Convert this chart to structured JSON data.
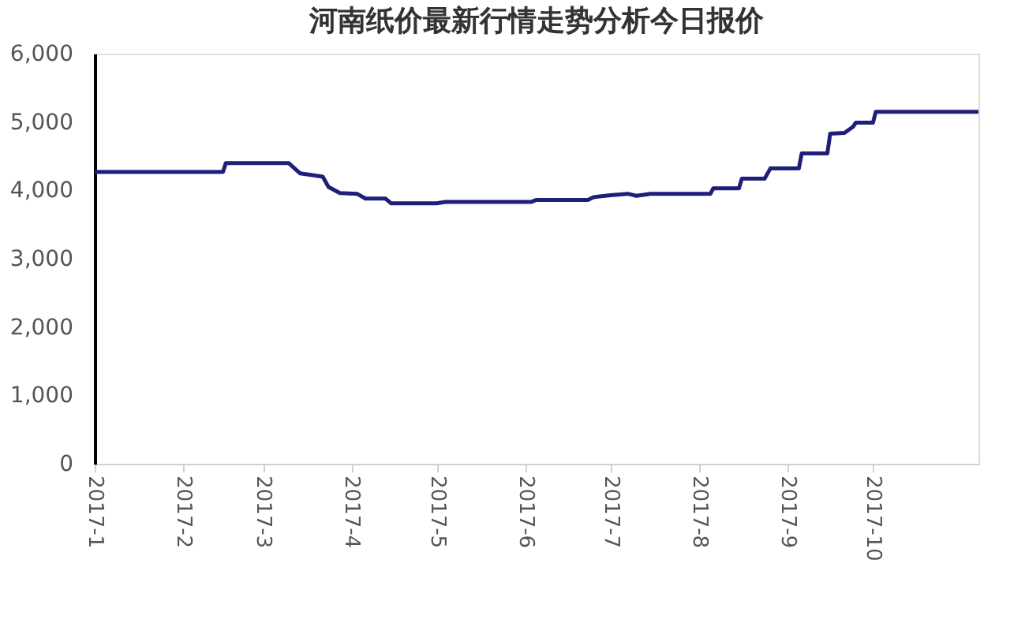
{
  "chart_data": {
    "type": "line",
    "title": "河南纸价最新行情走势分析今日报价",
    "x": [
      "2017-01-01",
      "2017-02-15",
      "2017-02-16",
      "2017-03-10",
      "2017-03-14",
      "2017-03-22",
      "2017-03-24",
      "2017-03-28",
      "2017-04-03",
      "2017-04-06",
      "2017-04-13",
      "2017-04-15",
      "2017-05-01",
      "2017-05-04",
      "2017-06-03",
      "2017-06-05",
      "2017-06-23",
      "2017-06-25",
      "2017-07-01",
      "2017-07-07",
      "2017-07-10",
      "2017-07-15",
      "2017-08-05",
      "2017-08-06",
      "2017-08-15",
      "2017-08-16",
      "2017-08-24",
      "2017-08-26",
      "2017-09-05",
      "2017-09-06",
      "2017-09-15",
      "2017-09-16",
      "2017-09-21",
      "2017-09-24",
      "2017-09-25",
      "2017-10-01",
      "2017-10-02",
      "2017-11-07"
    ],
    "series": [
      {
        "color": "#1f1f7a",
        "values": [
          4270,
          4270,
          4400,
          4400,
          4250,
          4200,
          4050,
          3960,
          3950,
          3880,
          3880,
          3810,
          3810,
          3830,
          3830,
          3860,
          3860,
          3900,
          3930,
          3950,
          3920,
          3950,
          3950,
          4030,
          4030,
          4170,
          4170,
          4320,
          4320,
          4540,
          4540,
          4830,
          4840,
          4930,
          4990,
          4990,
          5150,
          5150
        ]
      }
    ],
    "xlim": [
      "2017-01-01",
      "2017-11-07"
    ],
    "xticks": [
      {
        "value": "2017-01-01",
        "label": "2017-1"
      },
      {
        "value": "2017-02-01",
        "label": "2017-2"
      },
      {
        "value": "2017-03-01",
        "label": "2017-3"
      },
      {
        "value": "2017-04-01",
        "label": "2017-4"
      },
      {
        "value": "2017-05-01",
        "label": "2017-5"
      },
      {
        "value": "2017-06-01",
        "label": "2017-6"
      },
      {
        "value": "2017-07-01",
        "label": "2017-7"
      },
      {
        "value": "2017-08-01",
        "label": "2017-8"
      },
      {
        "value": "2017-09-01",
        "label": "2017-9"
      },
      {
        "value": "2017-10-01",
        "label": "2017-10"
      }
    ],
    "ylim": [
      0,
      6000
    ],
    "yticks": [
      0,
      {
        "value": 1000,
        "label": "1,000"
      },
      {
        "value": 2000,
        "label": "2,000"
      },
      {
        "value": 3000,
        "label": "3,000"
      },
      {
        "value": 4000,
        "label": "4,000"
      },
      {
        "value": 5000,
        "label": "5,000"
      },
      {
        "value": 6000,
        "label": "6,000"
      }
    ],
    "grid": false,
    "marker": "none",
    "line_style": "solid"
  }
}
